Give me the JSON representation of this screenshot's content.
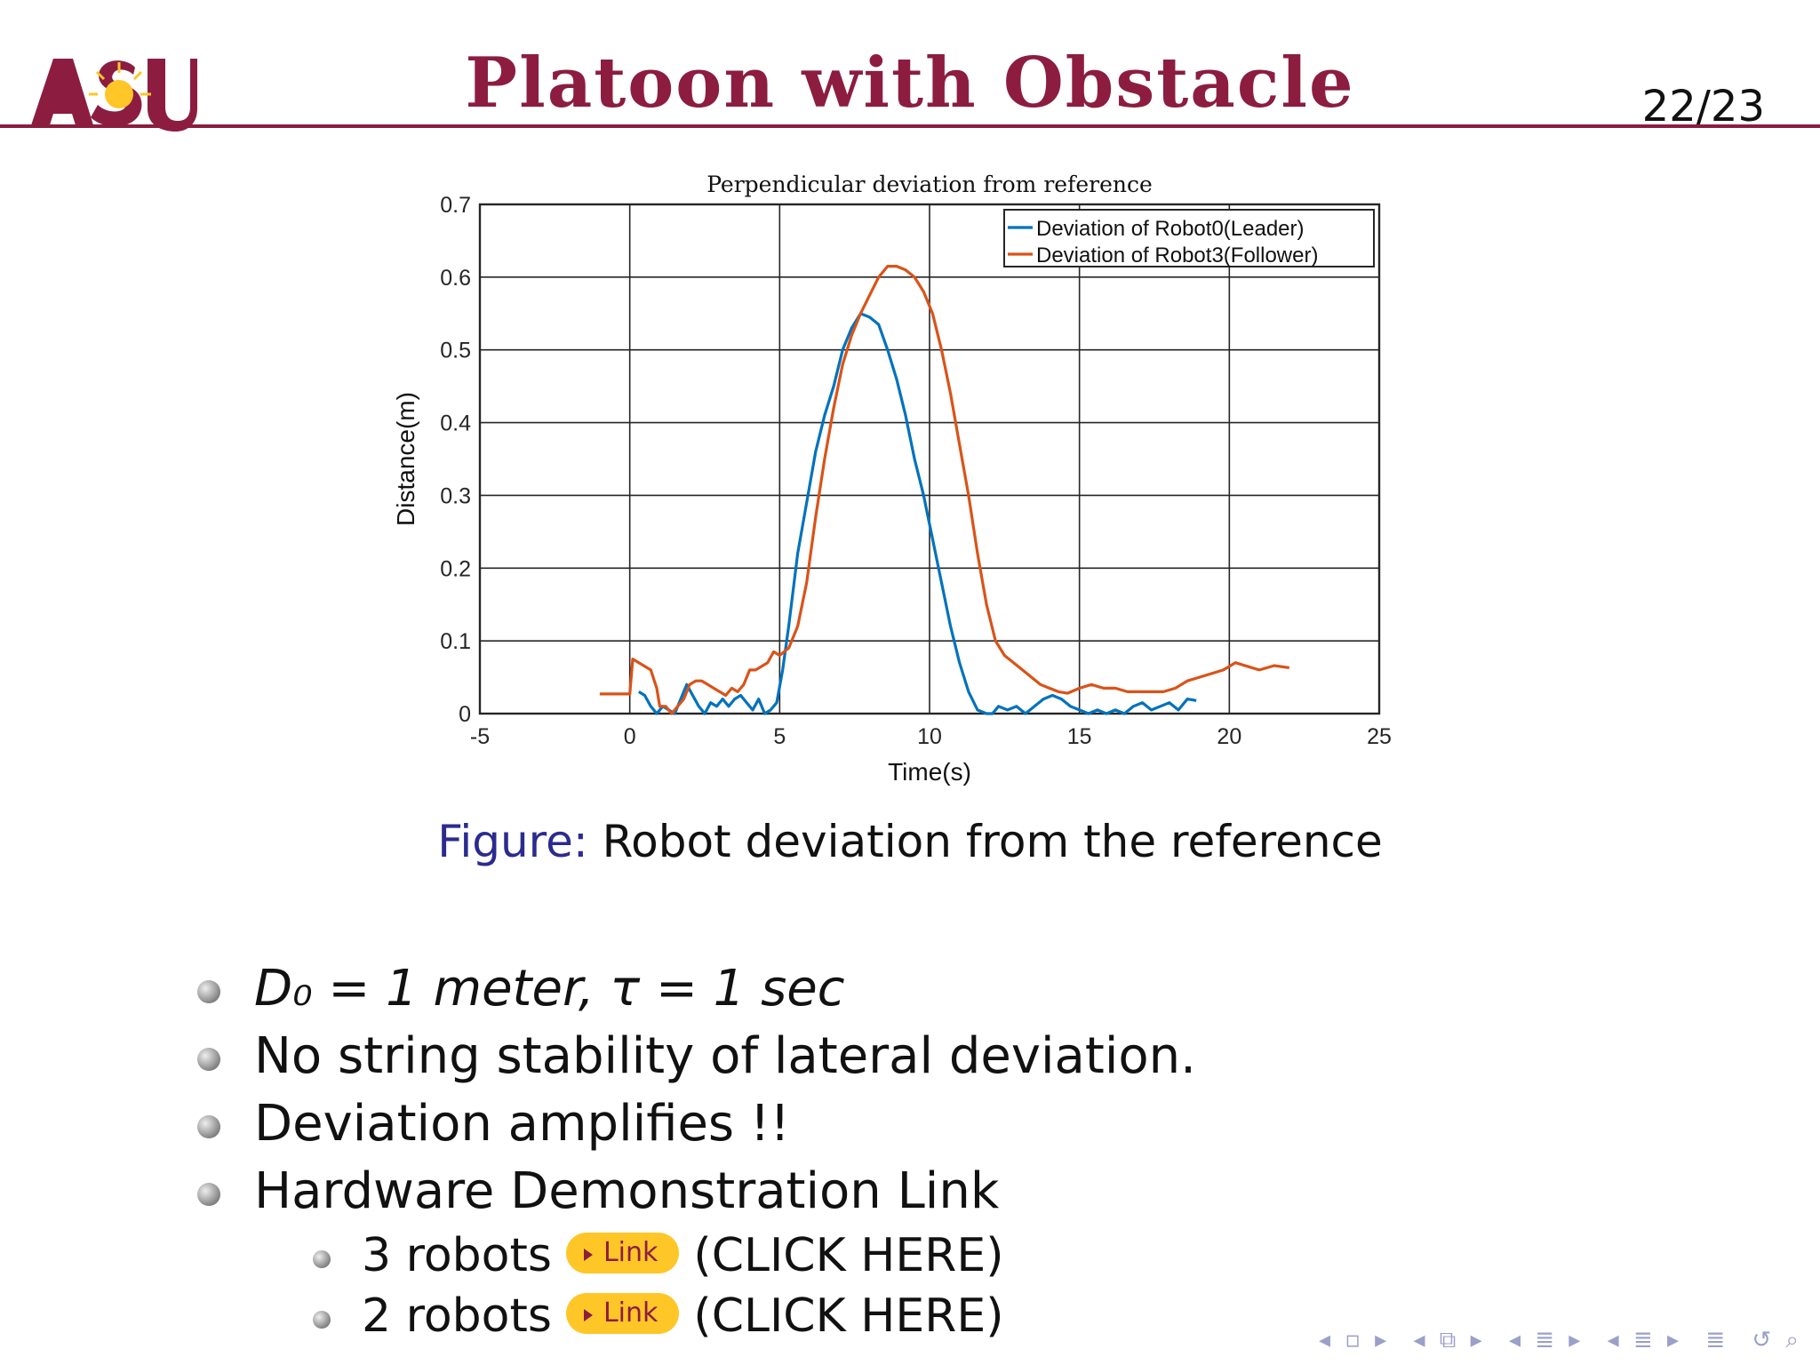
{
  "slide": {
    "logo_text": "ASU",
    "title": "Platoon with Obstacle",
    "page_number": "22/23",
    "brand_color": "#8c1d40",
    "accent_color": "#ffc627"
  },
  "chart_data": {
    "type": "line",
    "title": "Perpendicular deviation from reference",
    "xlabel": "Time(s)",
    "ylabel": "Distance(m)",
    "xlim": [
      -5,
      25
    ],
    "ylim": [
      0,
      0.7
    ],
    "xticks": [
      "-5",
      "0",
      "5",
      "10",
      "15",
      "20",
      "25"
    ],
    "yticks": [
      "0",
      "0.1",
      "0.2",
      "0.3",
      "0.4",
      "0.5",
      "0.6",
      "0.7"
    ],
    "grid": true,
    "legend_position": "top-right",
    "series": [
      {
        "name": "Deviation of Robot0(Leader)",
        "color": "#0072bd",
        "x": [
          0.3,
          0.5,
          0.7,
          0.9,
          1.1,
          1.3,
          1.5,
          1.7,
          1.9,
          2.1,
          2.3,
          2.5,
          2.7,
          2.9,
          3.1,
          3.3,
          3.5,
          3.7,
          3.9,
          4.1,
          4.3,
          4.5,
          4.7,
          4.9,
          5.1,
          5.3,
          5.6,
          5.9,
          6.2,
          6.5,
          6.8,
          7.1,
          7.4,
          7.7,
          8.0,
          8.3,
          8.6,
          8.9,
          9.2,
          9.5,
          9.8,
          10.1,
          10.4,
          10.7,
          11.0,
          11.3,
          11.6,
          11.9,
          12.1,
          12.3,
          12.6,
          12.9,
          13.2,
          13.5,
          13.8,
          14.1,
          14.4,
          14.7,
          15.0,
          15.3,
          15.6,
          15.9,
          16.2,
          16.5,
          16.8,
          17.1,
          17.4,
          17.7,
          18.0,
          18.3,
          18.6,
          18.9
        ],
        "y": [
          0.03,
          0.025,
          0.01,
          0.0,
          0.01,
          0.005,
          0.0,
          0.02,
          0.04,
          0.025,
          0.01,
          0.0,
          0.015,
          0.01,
          0.02,
          0.01,
          0.02,
          0.025,
          0.015,
          0.005,
          0.02,
          0.0,
          0.005,
          0.015,
          0.06,
          0.12,
          0.22,
          0.29,
          0.36,
          0.41,
          0.45,
          0.5,
          0.53,
          0.55,
          0.545,
          0.535,
          0.5,
          0.46,
          0.41,
          0.35,
          0.3,
          0.24,
          0.18,
          0.12,
          0.07,
          0.03,
          0.005,
          0.0,
          0.0,
          0.01,
          0.005,
          0.01,
          0.0,
          0.01,
          0.02,
          0.025,
          0.02,
          0.01,
          0.005,
          0.0,
          0.005,
          0.0,
          0.005,
          0.0,
          0.01,
          0.015,
          0.005,
          0.01,
          0.015,
          0.005,
          0.02,
          0.018
        ]
      },
      {
        "name": "Deviation of Robot3(Follower)",
        "color": "#d95319",
        "x": [
          -1.0,
          -0.5,
          0.0,
          0.1,
          0.3,
          0.5,
          0.7,
          0.9,
          1.0,
          1.2,
          1.4,
          1.6,
          1.8,
          2.0,
          2.2,
          2.4,
          2.6,
          2.8,
          3.0,
          3.2,
          3.4,
          3.6,
          3.8,
          4.0,
          4.2,
          4.4,
          4.6,
          4.8,
          5.0,
          5.3,
          5.6,
          5.9,
          6.2,
          6.5,
          6.8,
          7.1,
          7.4,
          7.7,
          8.0,
          8.3,
          8.6,
          8.9,
          9.2,
          9.5,
          9.8,
          10.1,
          10.4,
          10.7,
          11.0,
          11.3,
          11.6,
          11.9,
          12.2,
          12.5,
          12.8,
          13.1,
          13.4,
          13.7,
          14.0,
          14.3,
          14.6,
          15.0,
          15.4,
          15.8,
          16.2,
          16.6,
          17.0,
          17.4,
          17.8,
          18.2,
          18.6,
          19.0,
          19.4,
          19.8,
          20.2,
          20.6,
          21.0,
          21.5,
          22.0
        ],
        "y": [
          0.027,
          0.027,
          0.027,
          0.075,
          0.07,
          0.065,
          0.06,
          0.035,
          0.01,
          0.01,
          0.0,
          0.01,
          0.02,
          0.04,
          0.045,
          0.045,
          0.04,
          0.035,
          0.03,
          0.025,
          0.035,
          0.03,
          0.04,
          0.06,
          0.06,
          0.065,
          0.07,
          0.085,
          0.08,
          0.09,
          0.12,
          0.18,
          0.27,
          0.35,
          0.42,
          0.48,
          0.52,
          0.55,
          0.575,
          0.6,
          0.615,
          0.615,
          0.61,
          0.6,
          0.58,
          0.55,
          0.5,
          0.44,
          0.37,
          0.3,
          0.22,
          0.15,
          0.1,
          0.08,
          0.07,
          0.06,
          0.05,
          0.04,
          0.035,
          0.03,
          0.028,
          0.035,
          0.04,
          0.035,
          0.035,
          0.03,
          0.03,
          0.03,
          0.03,
          0.035,
          0.045,
          0.05,
          0.055,
          0.06,
          0.07,
          0.065,
          0.06,
          0.066,
          0.063
        ]
      }
    ]
  },
  "caption": {
    "label": "Figure:",
    "text": "Robot deviation from the reference"
  },
  "bullets": [
    "D₀ = 1 meter, τ = 1 sec",
    "No string stability of lateral deviation.",
    "Deviation amplifies !!",
    "Hardware Demonstration Link"
  ],
  "sub_bullets": [
    {
      "text": "3 robots",
      "link_label": "Link",
      "suffix": "(CLICK HERE)"
    },
    {
      "text": "2 robots",
      "link_label": "Link",
      "suffix": "(CLICK HERE)"
    }
  ]
}
